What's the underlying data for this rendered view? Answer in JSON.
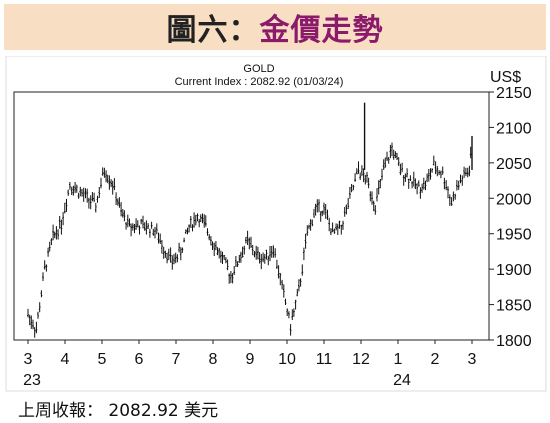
{
  "header": {
    "title_prefix": "圖六：",
    "title_main": "金價走勢"
  },
  "footer": {
    "note": "上周收報： 2082.92 美元"
  },
  "chart_data": {
    "type": "ohlc",
    "title": "GOLD",
    "subtitle": "Current Index : 2082.92 (01/03/24)",
    "unit_label": "US$",
    "ylim": [
      1800,
      2150
    ],
    "y_ticks": [
      1800,
      1850,
      1900,
      1950,
      2000,
      2050,
      2100,
      2150
    ],
    "x_ticks": [
      "3",
      "4",
      "5",
      "6",
      "7",
      "8",
      "9",
      "10",
      "11",
      "12",
      "1",
      "2",
      "3"
    ],
    "x_year_labels": [
      {
        "tick": 0,
        "label": "23"
      },
      {
        "tick": 10,
        "label": "24"
      }
    ],
    "grid": false,
    "series": [
      {
        "points": [
          [
            "2023-03-01",
            1836
          ],
          [
            "2023-03-08",
            1815
          ],
          [
            "2023-03-15",
            1900
          ],
          [
            "2023-03-22",
            1945
          ],
          [
            "2023-03-29",
            1965
          ],
          [
            "2023-04-05",
            2020
          ],
          [
            "2023-04-12",
            2010
          ],
          [
            "2023-04-19",
            2000
          ],
          [
            "2023-04-26",
            1990
          ],
          [
            "2023-05-03",
            2040
          ],
          [
            "2023-05-10",
            2020
          ],
          [
            "2023-05-17",
            1980
          ],
          [
            "2023-05-24",
            1960
          ],
          [
            "2023-05-31",
            1962
          ],
          [
            "2023-06-07",
            1960
          ],
          [
            "2023-06-14",
            1955
          ],
          [
            "2023-06-21",
            1930
          ],
          [
            "2023-06-28",
            1910
          ],
          [
            "2023-07-05",
            1925
          ],
          [
            "2023-07-12",
            1960
          ],
          [
            "2023-07-19",
            1975
          ],
          [
            "2023-07-26",
            1960
          ],
          [
            "2023-08-02",
            1935
          ],
          [
            "2023-08-09",
            1915
          ],
          [
            "2023-08-16",
            1890
          ],
          [
            "2023-08-23",
            1915
          ],
          [
            "2023-08-30",
            1940
          ],
          [
            "2023-09-06",
            1920
          ],
          [
            "2023-09-13",
            1915
          ],
          [
            "2023-09-20",
            1930
          ],
          [
            "2023-09-27",
            1875
          ],
          [
            "2023-10-04",
            1820
          ],
          [
            "2023-10-11",
            1870
          ],
          [
            "2023-10-18",
            1950
          ],
          [
            "2023-10-25",
            1985
          ],
          [
            "2023-11-01",
            1985
          ],
          [
            "2023-11-08",
            1950
          ],
          [
            "2023-11-15",
            1960
          ],
          [
            "2023-11-22",
            2000
          ],
          [
            "2023-11-29",
            2040
          ],
          [
            "2023-12-06",
            2025
          ],
          [
            "2023-12-13",
            1990
          ],
          [
            "2023-12-20",
            2040
          ],
          [
            "2023-12-27",
            2070
          ],
          [
            "2024-01-03",
            2040
          ],
          [
            "2024-01-10",
            2030
          ],
          [
            "2024-01-17",
            2015
          ],
          [
            "2024-01-24",
            2020
          ],
          [
            "2024-01-31",
            2045
          ],
          [
            "2024-02-07",
            2035
          ],
          [
            "2024-02-14",
            1995
          ],
          [
            "2024-02-21",
            2025
          ],
          [
            "2024-02-28",
            2040
          ],
          [
            "2024-03-01",
            2082.92
          ]
        ]
      }
    ]
  }
}
